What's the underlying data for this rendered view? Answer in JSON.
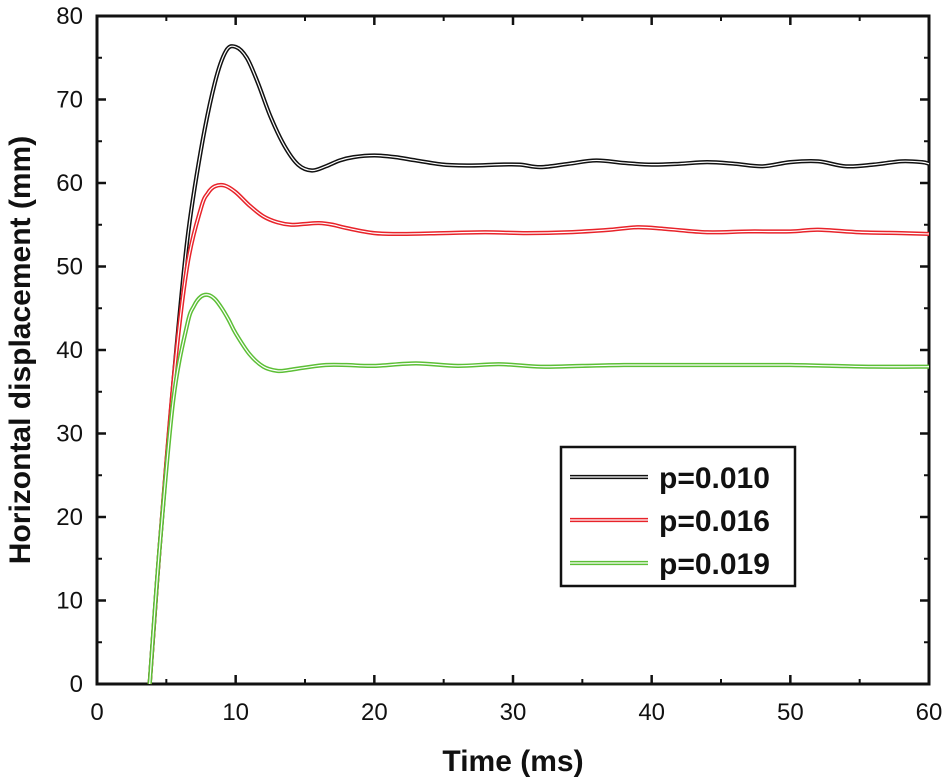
{
  "chart_data": {
    "type": "line",
    "title": "",
    "xlabel": "Time (ms)",
    "ylabel": "Horizontal displacement (mm)",
    "xlim": [
      0,
      60
    ],
    "ylim": [
      0,
      80
    ],
    "xticks": [
      0,
      10,
      20,
      30,
      40,
      50,
      60
    ],
    "yticks": [
      0,
      10,
      20,
      30,
      40,
      50,
      60,
      70,
      80
    ],
    "grid": false,
    "legend_position": "lower-right",
    "series": [
      {
        "name": "p=0.010",
        "color": "#111111",
        "x": [
          3.8,
          4.5,
          5.5,
          6.5,
          7.5,
          8.5,
          9.3,
          10.0,
          10.8,
          11.6,
          12.5,
          13.5,
          14.5,
          15.5,
          16.5,
          17.5,
          18.5,
          20.0,
          21.5,
          23.0,
          25.0,
          27.0,
          29.0,
          30.5,
          32.0,
          34.0,
          36.0,
          38.0,
          40.0,
          42.0,
          44.0,
          46.0,
          48.0,
          50.0,
          52.0,
          54.0,
          56.0,
          58.0,
          59.5,
          60.0
        ],
        "y": [
          0,
          16,
          36,
          53,
          64,
          72,
          75.8,
          76.3,
          75,
          72,
          68,
          64.5,
          62.2,
          61.5,
          62,
          62.7,
          63.1,
          63.3,
          63.1,
          62.7,
          62.2,
          62.1,
          62.2,
          62.2,
          61.9,
          62.3,
          62.7,
          62.4,
          62.2,
          62.3,
          62.5,
          62.3,
          62.0,
          62.5,
          62.6,
          62.0,
          62.2,
          62.6,
          62.5,
          62.3
        ]
      },
      {
        "name": "p=0.016",
        "color": "#e8232a",
        "x": [
          3.8,
          4.5,
          5.5,
          6.5,
          7.5,
          8.0,
          8.5,
          9.2,
          10.0,
          11.0,
          12.0,
          13.0,
          14.0,
          15.0,
          16.0,
          17.0,
          18.0,
          20.0,
          22.0,
          25.0,
          28.0,
          31.0,
          34.0,
          37.0,
          39.0,
          41.0,
          44.0,
          47.0,
          50.0,
          52.0,
          55.0,
          58.0,
          60.0
        ],
        "y": [
          0,
          16,
          36,
          50,
          57,
          58.8,
          59.6,
          59.7,
          58.9,
          57.3,
          56,
          55.3,
          55,
          55.1,
          55.2,
          55,
          54.6,
          54,
          53.9,
          54,
          54.1,
          54.0,
          54.1,
          54.4,
          54.7,
          54.5,
          54.1,
          54.2,
          54.2,
          54.4,
          54.1,
          54.0,
          53.9
        ]
      },
      {
        "name": "p=0.019",
        "color": "#5cbf36",
        "x": [
          3.8,
          4.5,
          5.5,
          6.5,
          7.0,
          7.5,
          8.0,
          8.5,
          9.0,
          9.5,
          10.0,
          11.0,
          12.0,
          13.0,
          13.8,
          15.0,
          16.5,
          18.0,
          20.0,
          23.0,
          26.0,
          29.0,
          32.0,
          35.0,
          38.0,
          41.0,
          44.0,
          47.0,
          50.0,
          53.0,
          56.0,
          59.0,
          60.0
        ],
        "y": [
          0,
          16,
          34,
          43,
          45.3,
          46.4,
          46.6,
          46.1,
          45,
          43.6,
          42,
          39.5,
          38,
          37.5,
          37.6,
          37.9,
          38.2,
          38.2,
          38.1,
          38.4,
          38.1,
          38.3,
          38.0,
          38.1,
          38.2,
          38.2,
          38.2,
          38.2,
          38.2,
          38.1,
          38.0,
          38.0,
          38.0
        ]
      }
    ]
  }
}
